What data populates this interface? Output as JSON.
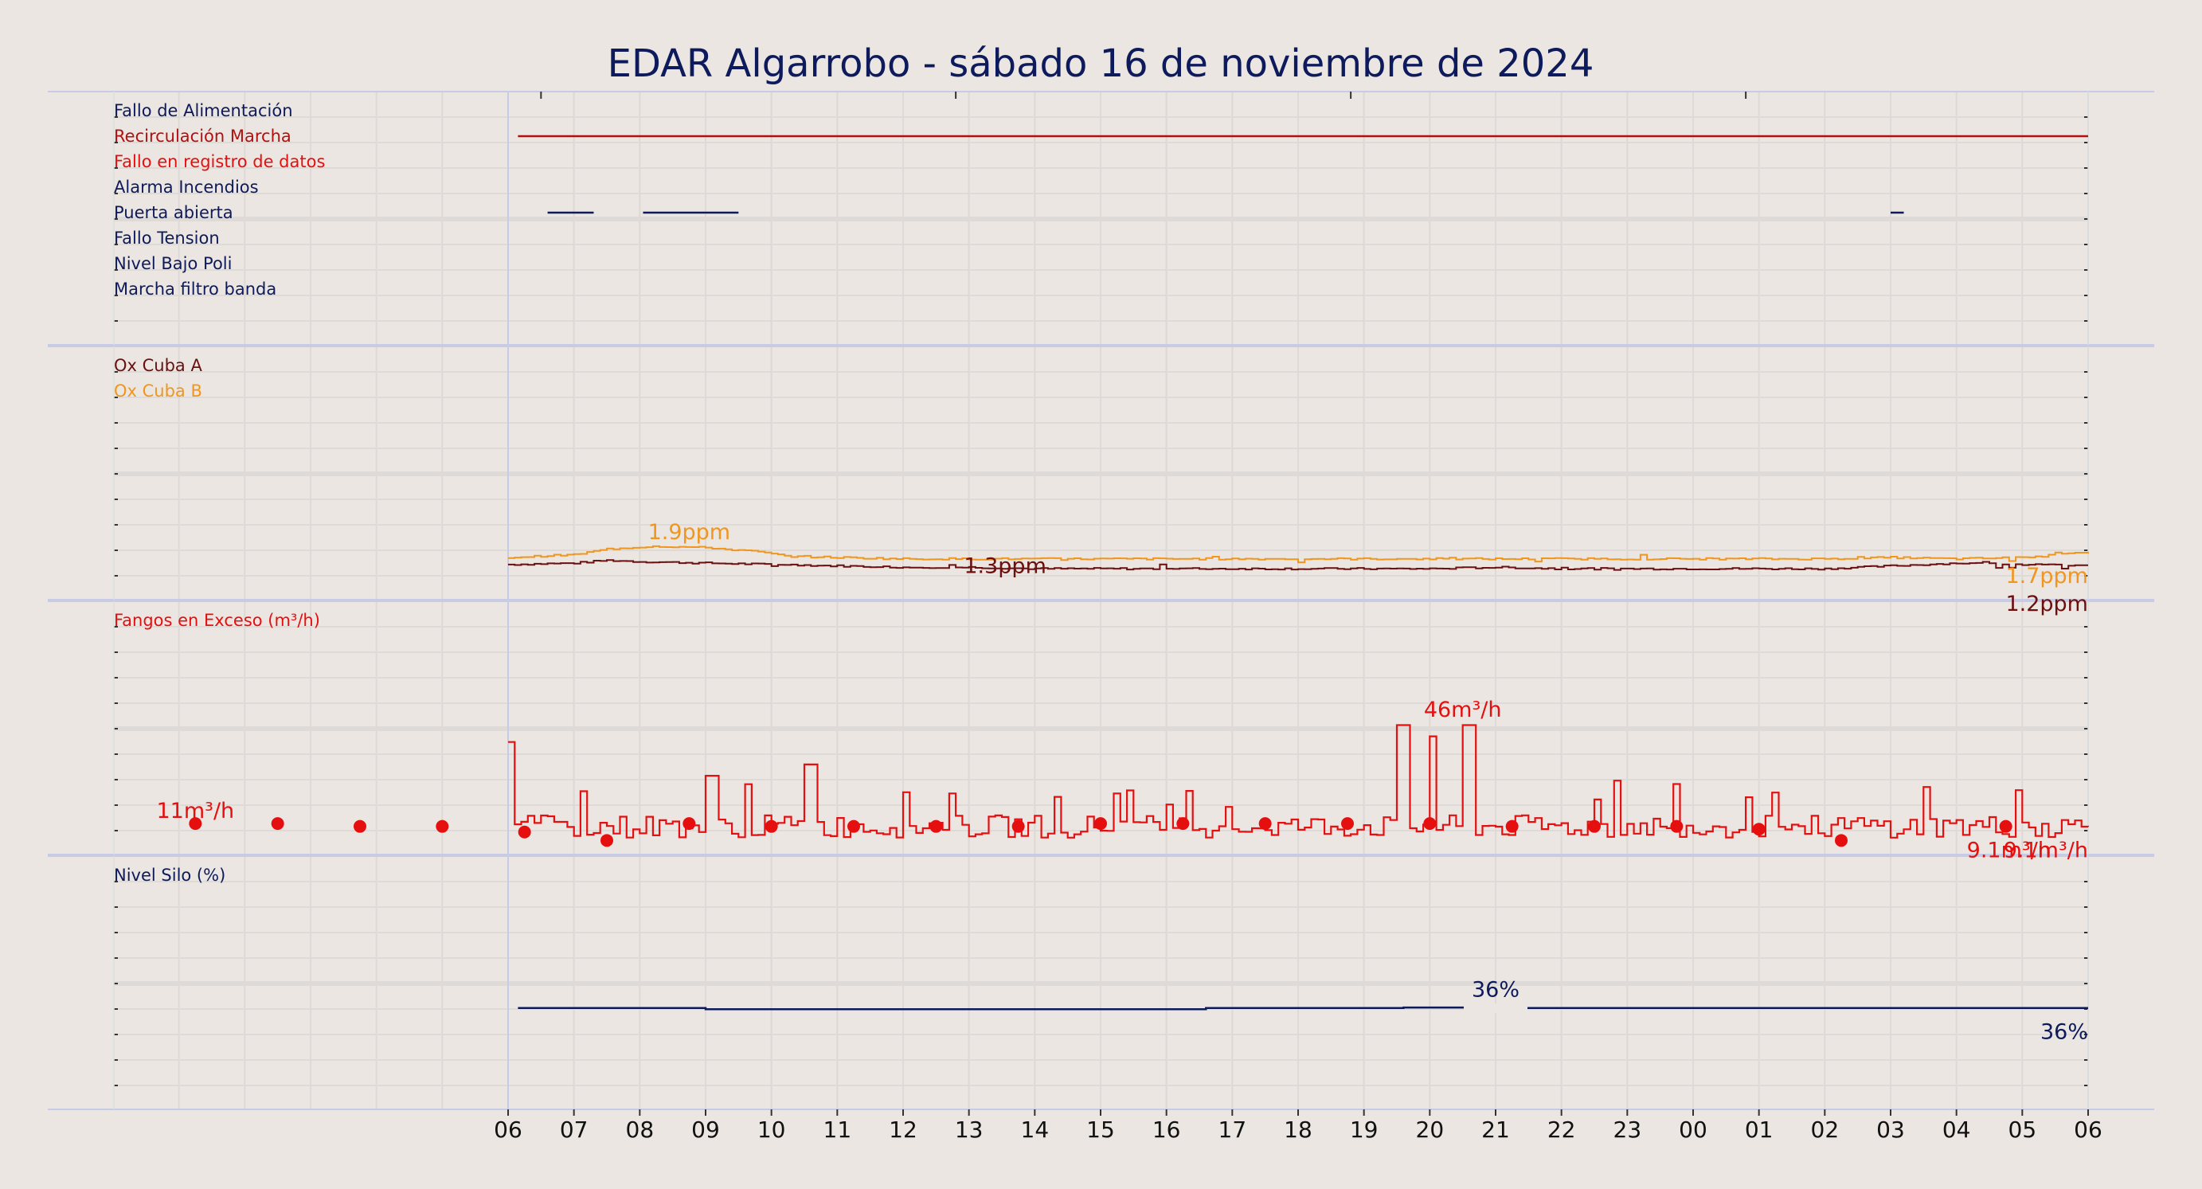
{
  "title": "EDAR Algarrobo   -   sábado 16 de noviembre de 2024",
  "colors": {
    "background": "#ebe6e1",
    "title": "#0d1a5c",
    "navy": "#0d1a5c",
    "maroon": "#6b0f0f",
    "orange": "#f0961e",
    "red": "#e60f0f",
    "darkred": "#b40f0f"
  },
  "chart_data": {
    "type": "line",
    "x_tick_labels": [
      "06",
      "07",
      "08",
      "09",
      "10",
      "11",
      "12",
      "13",
      "14",
      "15",
      "16",
      "17",
      "18",
      "19",
      "20",
      "21",
      "22",
      "23",
      "00",
      "01",
      "02",
      "03",
      "04",
      "05",
      "06"
    ],
    "panels": [
      {
        "id": "alarms",
        "labels": [
          {
            "text": "Fallo de Alimentación",
            "color": "#0d1a5c"
          },
          {
            "text": "Recirculación Marcha",
            "color": "#b40f0f"
          },
          {
            "text": "Fallo en registro de datos",
            "color": "#e60f0f"
          },
          {
            "text": "Alarma Incendios",
            "color": "#0d1a5c"
          },
          {
            "text": "Puerta abierta",
            "color": "#0d1a5c"
          },
          {
            "text": "Fallo Tension",
            "color": "#0d1a5c"
          },
          {
            "text": "Nivel Bajo Poli",
            "color": "#0d1a5c"
          },
          {
            "text": "Marcha filtro banda",
            "color": "#0d1a5c"
          }
        ],
        "state_series": [
          {
            "name": "Recirculación Marcha",
            "row": 1,
            "color": "#b40f0f",
            "intervals": [
              [
                0.15,
                24.0
              ]
            ]
          },
          {
            "name": "Puerta abierta",
            "row": 4,
            "color": "#0d1a5c",
            "intervals": [
              [
                0.6,
                1.3
              ],
              [
                2.05,
                3.5
              ],
              [
                21.0,
                21.2
              ]
            ]
          }
        ]
      },
      {
        "id": "oxygen",
        "labels": [
          {
            "text": "Ox Cuba A",
            "color": "#6b0f0f"
          },
          {
            "text": "Ox Cuba B",
            "color": "#f0961e"
          }
        ],
        "ylim": [
          0,
          9
        ],
        "series": [
          {
            "name": "Ox Cuba A",
            "color": "#6b0f0f",
            "points": [
              [
                0,
                1.25
              ],
              [
                1,
                1.3
              ],
              [
                1.5,
                1.4
              ],
              [
                2,
                1.35
              ],
              [
                3,
                1.3
              ],
              [
                4,
                1.25
              ],
              [
                5,
                1.2
              ],
              [
                6,
                1.15
              ],
              [
                7,
                1.15
              ],
              [
                8,
                1.1
              ],
              [
                9,
                1.1
              ],
              [
                10,
                1.1
              ],
              [
                11,
                1.1
              ],
              [
                12,
                1.1
              ],
              [
                13,
                1.1
              ],
              [
                14,
                1.1
              ],
              [
                15,
                1.15
              ],
              [
                16,
                1.1
              ],
              [
                17,
                1.1
              ],
              [
                18,
                1.1
              ],
              [
                19,
                1.1
              ],
              [
                20,
                1.1
              ],
              [
                21,
                1.2
              ],
              [
                22,
                1.3
              ],
              [
                23,
                1.25
              ],
              [
                24,
                1.2
              ]
            ]
          },
          {
            "name": "Ox Cuba B",
            "color": "#f0961e",
            "points": [
              [
                0,
                1.5
              ],
              [
                1,
                1.6
              ],
              [
                1.5,
                1.8
              ],
              [
                2.2,
                1.9
              ],
              [
                3,
                1.85
              ],
              [
                3.8,
                1.7
              ],
              [
                4.2,
                1.55
              ],
              [
                5,
                1.5
              ],
              [
                6,
                1.45
              ],
              [
                7,
                1.45
              ],
              [
                8,
                1.45
              ],
              [
                9,
                1.45
              ],
              [
                10,
                1.45
              ],
              [
                11,
                1.45
              ],
              [
                12,
                1.45
              ],
              [
                13,
                1.45
              ],
              [
                14,
                1.45
              ],
              [
                15,
                1.45
              ],
              [
                16,
                1.45
              ],
              [
                17,
                1.45
              ],
              [
                18,
                1.45
              ],
              [
                19,
                1.45
              ],
              [
                20,
                1.45
              ],
              [
                21,
                1.5
              ],
              [
                22,
                1.45
              ],
              [
                23,
                1.5
              ],
              [
                23.5,
                1.65
              ],
              [
                24,
                1.7
              ]
            ]
          }
        ],
        "annotations": [
          {
            "text": "1.9ppm",
            "x": 2.75,
            "y": 2.15,
            "color": "#f0961e",
            "anchor": "middle"
          },
          {
            "text": "1.3ppm",
            "x": 7.55,
            "y": 0.95,
            "color": "#6b0f0f",
            "anchor": "middle"
          },
          {
            "text": "1.7ppm",
            "x": 24.0,
            "y": 0.6,
            "color": "#f0961e",
            "anchor": "end"
          },
          {
            "text": "1.2ppm",
            "x": 24.0,
            "y": -0.4,
            "color": "#6b0f0f",
            "anchor": "end"
          }
        ]
      },
      {
        "id": "fangos",
        "labels": [
          {
            "text": "Fangos en Exceso (m³/h)",
            "color": "#e60f0f"
          }
        ],
        "ylim": [
          0,
          90
        ],
        "series": [
          {
            "name": "Fangos en Exceso (m³/h)",
            "color": "#e60f0f",
            "baseline": 10,
            "spikes": [
              [
                0,
                40
              ],
              [
                3.05,
                28
              ],
              [
                4.55,
                32
              ],
              [
                13.55,
                46
              ],
              [
                14.0,
                42
              ],
              [
                14.55,
                46
              ]
            ]
          }
        ],
        "daily_points": {
          "color": "#e60f0f",
          "points": [
            [
              -4.75,
              11
            ],
            [
              -3.5,
              11
            ],
            [
              -2.25,
              10
            ],
            [
              -1.0,
              10
            ],
            [
              0.25,
              8
            ],
            [
              1.5,
              5
            ],
            [
              2.75,
              11
            ],
            [
              4.0,
              10
            ],
            [
              5.25,
              10
            ],
            [
              6.5,
              10
            ],
            [
              7.75,
              10
            ],
            [
              9.0,
              11
            ],
            [
              10.25,
              11
            ],
            [
              11.5,
              11
            ],
            [
              12.75,
              11
            ],
            [
              14.0,
              11
            ],
            [
              15.25,
              10
            ],
            [
              16.5,
              10
            ],
            [
              17.75,
              10
            ],
            [
              19.0,
              9
            ],
            [
              20.25,
              5
            ],
            [
              22.75,
              10
            ]
          ]
        },
        "annotations": [
          {
            "text": "11m³/h",
            "x": -4.75,
            "y": 13,
            "color": "#e60f0f",
            "anchor": "middle"
          },
          {
            "text": "46m³/h",
            "x": 14.5,
            "y": 49,
            "color": "#e60f0f",
            "anchor": "middle"
          },
          {
            "text": "9.1m³/h",
            "x": 22.8,
            "y": -1,
            "color": "#e60f0f",
            "anchor": "middle"
          },
          {
            "text": "9.1m³/h",
            "x": 24.0,
            "y": -1,
            "color": "#e60f0f",
            "anchor": "end"
          }
        ]
      },
      {
        "id": "silo",
        "labels": [
          {
            "text": "Nivel Silo (%)",
            "color": "#0d1a5c"
          }
        ],
        "ylim": [
          0,
          90
        ],
        "series": [
          {
            "name": "Nivel Silo (%)",
            "color": "#0d1a5c",
            "points": [
              [
                0.15,
                36
              ],
              [
                3.0,
                36
              ],
              [
                3.0,
                35.6
              ],
              [
                10.6,
                35.6
              ],
              [
                10.6,
                36
              ],
              [
                13.6,
                36
              ],
              [
                13.6,
                36.2
              ],
              [
                15.4,
                36.2
              ],
              [
                15.4,
                36
              ],
              [
                24,
                36
              ]
            ]
          }
        ],
        "annotations": [
          {
            "text": "36%",
            "x": 15.0,
            "y": 40,
            "color": "#0d1a5c",
            "anchor": "middle"
          },
          {
            "text": "36%",
            "x": 24.0,
            "y": 25,
            "color": "#0d1a5c",
            "anchor": "end"
          }
        ]
      }
    ]
  }
}
